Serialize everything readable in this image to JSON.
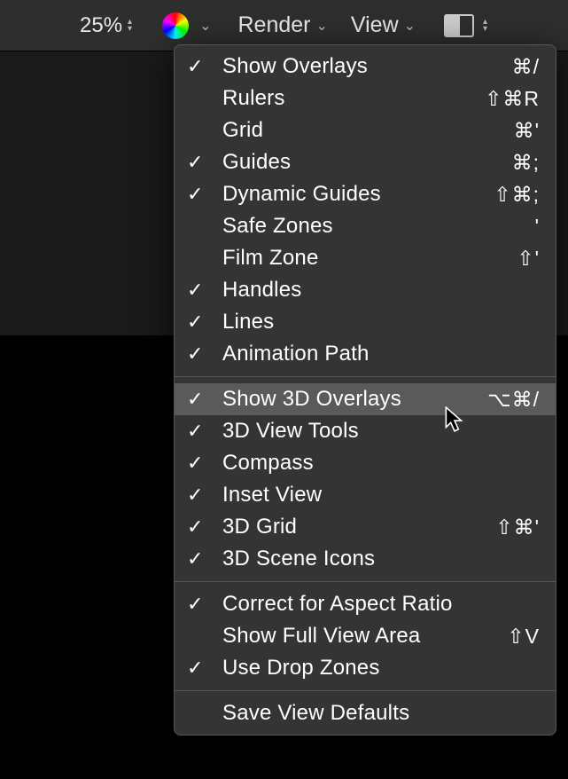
{
  "toolbar": {
    "zoom": "25%",
    "render_label": "Render",
    "view_label": "View"
  },
  "menu": {
    "groups": [
      [
        {
          "checked": true,
          "label": "Show Overlays",
          "shortcut": "⌘/",
          "highlight": false
        },
        {
          "checked": false,
          "label": "Rulers",
          "shortcut": "⇧⌘R",
          "highlight": false
        },
        {
          "checked": false,
          "label": "Grid",
          "shortcut": "⌘'",
          "highlight": false
        },
        {
          "checked": true,
          "label": "Guides",
          "shortcut": "⌘;",
          "highlight": false
        },
        {
          "checked": true,
          "label": "Dynamic Guides",
          "shortcut": "⇧⌘;",
          "highlight": false
        },
        {
          "checked": false,
          "label": "Safe Zones",
          "shortcut": "'",
          "highlight": false
        },
        {
          "checked": false,
          "label": "Film Zone",
          "shortcut": "⇧'",
          "highlight": false
        },
        {
          "checked": true,
          "label": "Handles",
          "shortcut": "",
          "highlight": false
        },
        {
          "checked": true,
          "label": "Lines",
          "shortcut": "",
          "highlight": false
        },
        {
          "checked": true,
          "label": "Animation Path",
          "shortcut": "",
          "highlight": false
        }
      ],
      [
        {
          "checked": true,
          "label": "Show 3D Overlays",
          "shortcut": "⌥⌘/",
          "highlight": true
        },
        {
          "checked": true,
          "label": "3D View Tools",
          "shortcut": "",
          "highlight": false
        },
        {
          "checked": true,
          "label": "Compass",
          "shortcut": "",
          "highlight": false
        },
        {
          "checked": true,
          "label": "Inset View",
          "shortcut": "",
          "highlight": false
        },
        {
          "checked": true,
          "label": "3D Grid",
          "shortcut": "⇧⌘'",
          "highlight": false
        },
        {
          "checked": true,
          "label": "3D Scene Icons",
          "shortcut": "",
          "highlight": false
        }
      ],
      [
        {
          "checked": true,
          "label": "Correct for Aspect Ratio",
          "shortcut": "",
          "highlight": false
        },
        {
          "checked": false,
          "label": "Show Full View Area",
          "shortcut": "⇧V",
          "highlight": false
        },
        {
          "checked": true,
          "label": "Use Drop Zones",
          "shortcut": "",
          "highlight": false
        }
      ],
      [
        {
          "checked": false,
          "label": "Save View Defaults",
          "shortcut": "",
          "highlight": false
        }
      ]
    ]
  },
  "colors": {
    "toolbar_bg": "#2e2e2e",
    "body_bg": "#1a1a1a",
    "menu_bg": "#343434",
    "menu_highlight": "#5a5a5a",
    "text": "#ffffff",
    "separator": "#555555"
  }
}
